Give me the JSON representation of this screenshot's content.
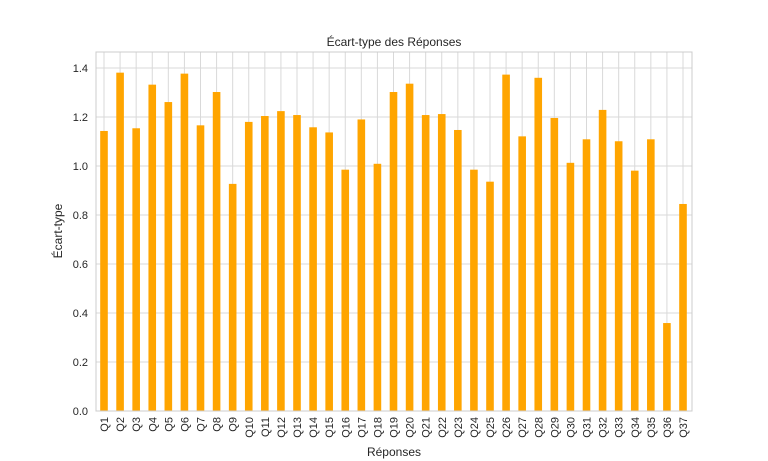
{
  "chart_data": {
    "type": "bar",
    "title": "Écart-type des Réponses",
    "xlabel": "Réponses",
    "ylabel": "Écart-type",
    "ylim": [
      0,
      1.4
    ],
    "yticks": [
      "0.0",
      "0.2",
      "0.4",
      "0.6",
      "0.8",
      "1.0",
      "1.2",
      "1.4"
    ],
    "grid": true,
    "bar_color": "#FFA500",
    "categories": [
      "Q1",
      "Q2",
      "Q3",
      "Q4",
      "Q5",
      "Q6",
      "Q7",
      "Q8",
      "Q9",
      "Q10",
      "Q11",
      "Q12",
      "Q13",
      "Q14",
      "Q15",
      "Q16",
      "Q17",
      "Q18",
      "Q19",
      "Q20",
      "Q21",
      "Q22",
      "Q23",
      "Q24",
      "Q25",
      "Q26",
      "Q27",
      "Q28",
      "Q29",
      "Q30",
      "Q31",
      "Q32",
      "Q33",
      "Q34",
      "Q35",
      "Q36",
      "Q37"
    ],
    "values": [
      1.143,
      1.381,
      1.154,
      1.332,
      1.261,
      1.377,
      1.166,
      1.302,
      0.927,
      1.18,
      1.204,
      1.224,
      1.208,
      1.158,
      1.137,
      0.985,
      1.19,
      1.009,
      1.302,
      1.336,
      1.208,
      1.212,
      1.147,
      0.985,
      0.936,
      1.373,
      1.121,
      1.36,
      1.196,
      1.013,
      1.109,
      1.229,
      1.101,
      0.981,
      1.109,
      0.359,
      0.845
    ]
  }
}
